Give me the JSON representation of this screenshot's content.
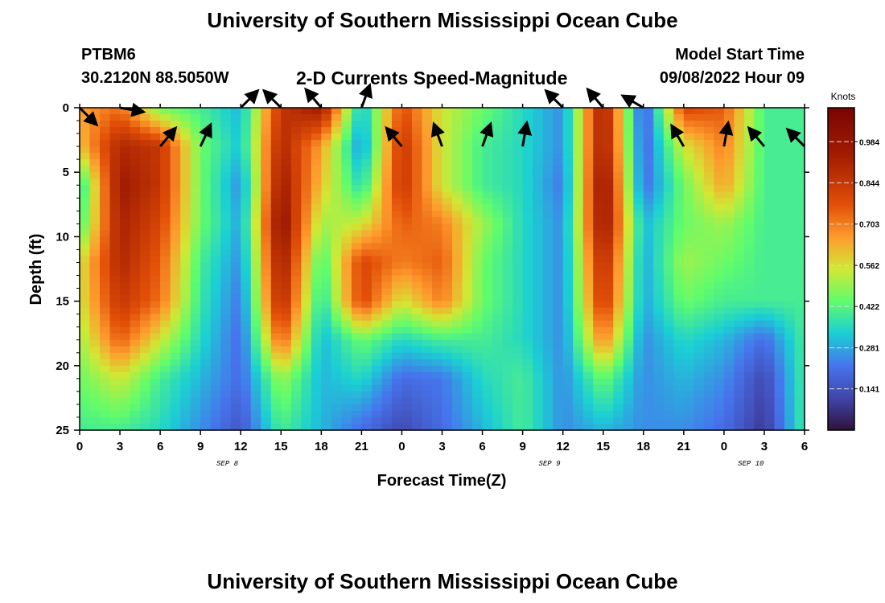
{
  "header": {
    "title": "University of Southern Mississippi Ocean Cube",
    "station": "PTBM6",
    "coords": "30.2120N  88.5050W",
    "subtitle": "2-D Currents Speed-Magnitude",
    "start_label": "Model Start Time",
    "start_value": "09/08/2022 Hour 09"
  },
  "footer": {
    "title": "University of Southern Mississippi Ocean Cube"
  },
  "chart_data": {
    "type": "heatmap",
    "title": "2-D Currents Speed-Magnitude",
    "xlabel": "Forecast Time(Z)",
    "ylabel": "Depth (ft)",
    "x_ticks": [
      "0",
      "3",
      "6",
      "9",
      "12",
      "15",
      "18",
      "21",
      "0",
      "3",
      "6",
      "9",
      "12",
      "15",
      "18",
      "21",
      "0",
      "3",
      "6"
    ],
    "y_ticks": [
      "0",
      "5",
      "10",
      "15",
      "20",
      "25"
    ],
    "ylim": [
      0,
      25
    ],
    "date_labels": [
      {
        "text": "SEP 8",
        "at_hour": 11
      },
      {
        "text": "SEP 9",
        "at_hour": 35
      },
      {
        "text": "SEP 10",
        "at_hour": 50
      }
    ],
    "colorbar": {
      "title": "Knots",
      "ticks": [
        "0.984",
        "0.844",
        "0.703",
        "0.562",
        "0.422",
        "0.281",
        "0.141"
      ],
      "range": [
        0.0,
        1.1
      ]
    },
    "columns_hours": [
      0,
      3,
      6,
      9,
      12,
      15,
      18,
      21,
      24,
      27,
      30,
      33,
      36,
      39,
      42,
      45,
      48,
      51,
      54
    ],
    "depths_ft": [
      0,
      3,
      6,
      9,
      12,
      15,
      18,
      21,
      25
    ],
    "speed_knots": [
      [
        0.65,
        0.72,
        0.45,
        0.4,
        0.3,
        0.85,
        0.95,
        0.3,
        0.78,
        0.55,
        0.45,
        0.35,
        0.25,
        0.95,
        0.15,
        0.8,
        0.75,
        0.4,
        0.4
      ],
      [
        0.6,
        0.9,
        0.85,
        0.45,
        0.32,
        0.9,
        0.65,
        0.25,
        0.85,
        0.55,
        0.4,
        0.35,
        0.25,
        0.95,
        0.18,
        0.55,
        0.7,
        0.4,
        0.4
      ],
      [
        0.35,
        0.95,
        0.85,
        0.45,
        0.25,
        0.95,
        0.6,
        0.35,
        0.85,
        0.55,
        0.4,
        0.35,
        0.22,
        1.0,
        0.2,
        0.45,
        0.65,
        0.4,
        0.4
      ],
      [
        0.4,
        0.92,
        0.8,
        0.45,
        0.28,
        1.0,
        0.5,
        0.55,
        0.75,
        0.7,
        0.5,
        0.35,
        0.25,
        0.98,
        0.3,
        0.45,
        0.5,
        0.4,
        0.4
      ],
      [
        0.55,
        0.9,
        0.75,
        0.4,
        0.25,
        0.95,
        0.4,
        0.8,
        0.7,
        0.75,
        0.45,
        0.35,
        0.25,
        0.9,
        0.28,
        0.5,
        0.45,
        0.4,
        0.4
      ],
      [
        0.55,
        0.85,
        0.72,
        0.38,
        0.22,
        0.9,
        0.35,
        0.8,
        0.55,
        0.7,
        0.45,
        0.35,
        0.25,
        0.85,
        0.28,
        0.45,
        0.4,
        0.4,
        0.4
      ],
      [
        0.5,
        0.75,
        0.55,
        0.35,
        0.2,
        0.75,
        0.3,
        0.45,
        0.35,
        0.4,
        0.4,
        0.35,
        0.25,
        0.7,
        0.25,
        0.35,
        0.3,
        0.2,
        0.4
      ],
      [
        0.45,
        0.55,
        0.4,
        0.3,
        0.2,
        0.5,
        0.3,
        0.35,
        0.2,
        0.22,
        0.35,
        0.4,
        0.25,
        0.45,
        0.25,
        0.3,
        0.25,
        0.12,
        0.4
      ],
      [
        0.4,
        0.4,
        0.35,
        0.25,
        0.15,
        0.4,
        0.3,
        0.2,
        0.12,
        0.2,
        0.3,
        0.4,
        0.25,
        0.3,
        0.25,
        0.25,
        0.2,
        0.08,
        0.4
      ]
    ],
    "vectors": [
      {
        "hour": 0,
        "depth": 0,
        "dir_deg": 135,
        "speed": 0.65
      },
      {
        "hour": 3,
        "depth": 0,
        "dir_deg": 100,
        "speed": 0.72
      },
      {
        "hour": 6,
        "depth": 3,
        "dir_deg": 40,
        "speed": 0.85
      },
      {
        "hour": 9,
        "depth": 3,
        "dir_deg": 25,
        "speed": 0.45
      },
      {
        "hour": 12,
        "depth": 0,
        "dir_deg": 45,
        "speed": 0.3
      },
      {
        "hour": 15,
        "depth": 0,
        "dir_deg": 315,
        "speed": 0.85
      },
      {
        "hour": 18,
        "depth": 0,
        "dir_deg": 320,
        "speed": 0.95
      },
      {
        "hour": 21,
        "depth": 0,
        "dir_deg": 20,
        "speed": 0.3
      },
      {
        "hour": 24,
        "depth": 3,
        "dir_deg": 320,
        "speed": 0.85
      },
      {
        "hour": 27,
        "depth": 3,
        "dir_deg": 340,
        "speed": 0.55
      },
      {
        "hour": 30,
        "depth": 3,
        "dir_deg": 20,
        "speed": 0.4
      },
      {
        "hour": 33,
        "depth": 3,
        "dir_deg": 10,
        "speed": 0.35
      },
      {
        "hour": 36,
        "depth": 0,
        "dir_deg": 315,
        "speed": 0.25
      },
      {
        "hour": 39,
        "depth": 0,
        "dir_deg": 320,
        "speed": 0.95
      },
      {
        "hour": 42,
        "depth": 0,
        "dir_deg": 300,
        "speed": 0.15
      },
      {
        "hour": 45,
        "depth": 3,
        "dir_deg": 330,
        "speed": 0.55
      },
      {
        "hour": 48,
        "depth": 3,
        "dir_deg": 10,
        "speed": 0.7
      },
      {
        "hour": 51,
        "depth": 3,
        "dir_deg": 320,
        "speed": 0.4
      },
      {
        "hour": 54,
        "depth": 3,
        "dir_deg": 315,
        "speed": 0.4
      }
    ]
  }
}
